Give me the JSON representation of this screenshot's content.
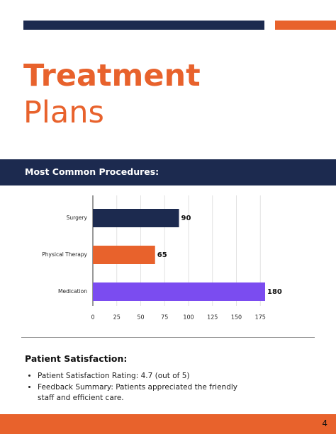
{
  "header": {
    "title_bold": "Treatment",
    "title_light": "Plans"
  },
  "section_band": "Most Common Procedures:",
  "chart_data": {
    "type": "bar",
    "orientation": "horizontal",
    "categories": [
      "Surgery",
      "Physical Therapy",
      "Medication"
    ],
    "values": [
      90,
      65,
      180
    ],
    "colors": [
      "#1c2a4f",
      "#e8622c",
      "#7b4cf0"
    ],
    "xlim": [
      0,
      180
    ],
    "xticks": [
      0,
      25,
      50,
      75,
      100,
      125,
      150,
      175
    ],
    "grid": true
  },
  "satisfaction": {
    "heading": "Patient Satisfaction:",
    "bullets": [
      "Patient Satisfaction Rating: 4.7 (out of 5)",
      "Feedback Summary: Patients appreciated the friendly staff and efficient care."
    ]
  },
  "footer": {
    "page_number": "4"
  }
}
